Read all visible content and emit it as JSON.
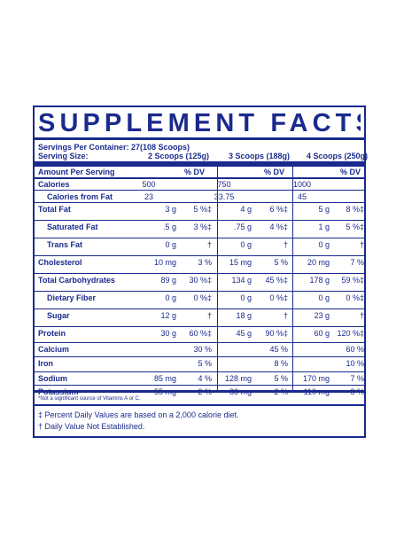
{
  "title": "SUPPLEMENT FACTS",
  "servings_per_container": "Servings Per Container: 27(108 Scoops)",
  "serving_size_label": "Serving Size:",
  "serving_sizes": [
    "2 Scoops (125g)",
    "3 Scoops (188g)",
    "4 Scoops (250g)"
  ],
  "amount_per_serving": "Amount Per Serving",
  "dv_header": "% DV",
  "rows": [
    {
      "name": "Calories",
      "indent": false,
      "bold": true,
      "cells": [
        [
          "500",
          ""
        ],
        [
          "750",
          ""
        ],
        [
          "1000",
          ""
        ]
      ]
    },
    {
      "name": "Calories from Fat",
      "indent": true,
      "bold": true,
      "cells": [
        [
          "23",
          ""
        ],
        [
          "33.75",
          ""
        ],
        [
          "45",
          ""
        ]
      ]
    },
    {
      "name": "Total Fat",
      "indent": false,
      "bold": true,
      "cells": [
        [
          "3 g",
          "5 %‡"
        ],
        [
          "4 g",
          "6 %‡"
        ],
        [
          "5 g",
          "8 %‡"
        ]
      ]
    },
    {
      "name": "Saturated Fat",
      "indent": true,
      "bold": true,
      "cells": [
        [
          ".5 g",
          "3 %‡"
        ],
        [
          ".75 g",
          "4 %‡"
        ],
        [
          "1 g",
          "5 %‡"
        ]
      ]
    },
    {
      "name": "Trans Fat",
      "indent": true,
      "bold": true,
      "cells": [
        [
          "0 g",
          "†"
        ],
        [
          "0 g",
          "†"
        ],
        [
          "0 g",
          "†"
        ]
      ]
    },
    {
      "name": "Cholesterol",
      "indent": false,
      "bold": true,
      "cells": [
        [
          "10 mg",
          "3 %"
        ],
        [
          "15 mg",
          "5 %"
        ],
        [
          "20 mg",
          "7 %"
        ]
      ]
    },
    {
      "name": "Total Carbohydrates",
      "indent": false,
      "bold": true,
      "cells": [
        [
          "89 g",
          "30 %‡"
        ],
        [
          "134 g",
          "45 %‡"
        ],
        [
          "178 g",
          "59 %‡"
        ]
      ]
    },
    {
      "name": "Dietary Fiber",
      "indent": true,
      "bold": true,
      "cells": [
        [
          "0 g",
          "0 %‡"
        ],
        [
          "0 g",
          "0 %‡"
        ],
        [
          "0 g",
          "0 %‡"
        ]
      ]
    },
    {
      "name": "Sugar",
      "indent": true,
      "bold": true,
      "cells": [
        [
          "12 g",
          "†"
        ],
        [
          "18 g",
          "†"
        ],
        [
          "23 g",
          "†"
        ]
      ]
    },
    {
      "name": "Protein",
      "indent": false,
      "bold": true,
      "cells": [
        [
          "30 g",
          "60 %‡"
        ],
        [
          "45 g",
          "90 %‡"
        ],
        [
          "60 g",
          "120 %‡"
        ]
      ]
    },
    {
      "name": "Calcium",
      "indent": false,
      "bold": true,
      "cells": [
        [
          "",
          "30 %"
        ],
        [
          "",
          "45 %"
        ],
        [
          "",
          "60 %"
        ]
      ]
    },
    {
      "name": "Iron",
      "indent": false,
      "bold": true,
      "cells": [
        [
          "",
          "5 %"
        ],
        [
          "",
          "8 %"
        ],
        [
          "",
          "10 %"
        ]
      ]
    },
    {
      "name": "Sodium",
      "indent": false,
      "bold": true,
      "cells": [
        [
          "85 mg",
          "4 %"
        ],
        [
          "128 mg",
          "5 %"
        ],
        [
          "170 mg",
          "7 %"
        ]
      ]
    },
    {
      "name": "Potassium",
      "indent": false,
      "bold": true,
      "cells": [
        [
          "55 mg",
          "2 %"
        ],
        [
          "83 mg",
          "2 %"
        ],
        [
          "110 mg",
          "3 %"
        ]
      ]
    }
  ],
  "note_small": "*Not a significant source of Vitamins A or C.",
  "footnote_1": "‡ Percent Daily Values are based on a 2,000 calorie diet.",
  "footnote_2": "† Daily Value Not Established.",
  "colors": {
    "ink": "#1a2a8c",
    "background": "#ffffff"
  }
}
